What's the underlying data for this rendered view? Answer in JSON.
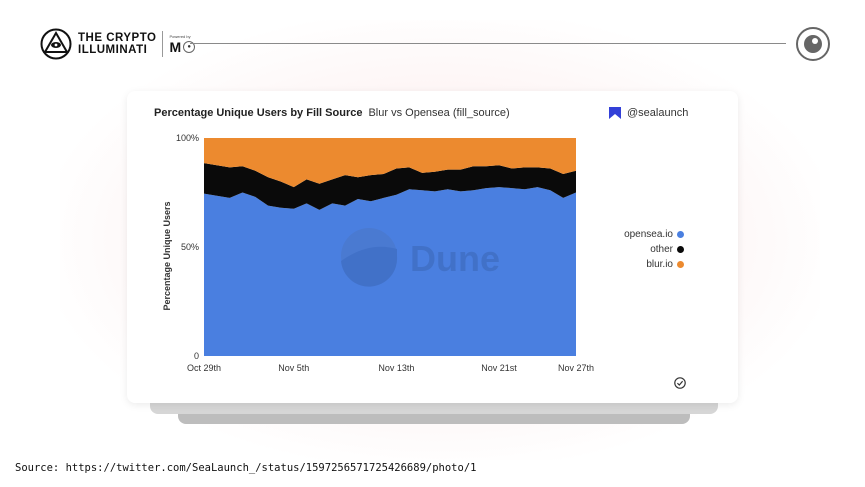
{
  "header": {
    "brand_line1": "THE CRYPTO",
    "brand_line2": "ILLUMINATI",
    "powered_by": "Powered by",
    "powered_mark": "M"
  },
  "card": {
    "title": "Percentage Unique Users by Fill Source",
    "subtitle": "Blur vs Opensea (fill_source)",
    "handle": "@sealaunch",
    "watermark": "Dune"
  },
  "source_text": "Source: https://twitter.com/SeaLaunch_/status/1597256571725426689/photo/1",
  "colors": {
    "opensea": "#4a7fe0",
    "other": "#0a0a0a",
    "blur": "#ec8a2f",
    "sealaunch_icon": "#3340d8"
  },
  "chart_data": {
    "type": "area",
    "stacked": true,
    "title": "Percentage Unique Users by Fill Source",
    "subtitle": "Blur vs Opensea (fill_source)",
    "ylabel": "Percentage Unique Users",
    "xlabel": "",
    "ylim": [
      0,
      100
    ],
    "yticks": [
      0,
      50,
      100
    ],
    "ytick_labels": [
      "0",
      "50%",
      "100%"
    ],
    "xtick_labels": [
      "Oct 29th",
      "Nov 5th",
      "Nov 13th",
      "Nov 21st",
      "Nov 27th"
    ],
    "xtick_index": [
      0,
      7,
      15,
      23,
      29
    ],
    "legend_position": "right",
    "x": [
      "Oct 29",
      "Oct 30",
      "Oct 31",
      "Nov 1",
      "Nov 2",
      "Nov 3",
      "Nov 4",
      "Nov 5",
      "Nov 6",
      "Nov 7",
      "Nov 8",
      "Nov 9",
      "Nov 10",
      "Nov 11",
      "Nov 12",
      "Nov 13",
      "Nov 14",
      "Nov 15",
      "Nov 16",
      "Nov 17",
      "Nov 18",
      "Nov 19",
      "Nov 20",
      "Nov 21",
      "Nov 22",
      "Nov 23",
      "Nov 24",
      "Nov 25",
      "Nov 26",
      "Nov 27"
    ],
    "series": [
      {
        "name": "opensea.io",
        "color": "#4a7fe0",
        "values": [
          74.5,
          73.5,
          72.5,
          75,
          73,
          69,
          68,
          67.5,
          70,
          67,
          70,
          69,
          72,
          71,
          72.5,
          74,
          76.5,
          76,
          75.5,
          76.5,
          75.5,
          76,
          77,
          77.5,
          77,
          76.5,
          77.5,
          76,
          72.5,
          75
        ]
      },
      {
        "name": "other",
        "color": "#0a0a0a",
        "values": [
          14,
          14,
          14,
          12,
          12,
          13,
          12,
          10,
          11,
          12,
          11,
          14,
          10,
          12,
          11,
          12,
          10,
          8,
          9,
          9,
          10,
          11,
          10,
          10,
          9,
          10,
          9,
          10,
          11,
          10
        ]
      },
      {
        "name": "blur.io",
        "color": "#ec8a2f",
        "values": [
          11.5,
          12.5,
          13.5,
          13,
          15,
          18,
          20,
          22.5,
          19,
          21,
          19,
          17,
          18,
          17,
          16.5,
          14,
          13.5,
          16,
          15.5,
          14.5,
          14.5,
          13,
          13,
          12.5,
          14,
          13.5,
          13.5,
          14,
          16.5,
          15
        ]
      }
    ],
    "legend_entries": [
      "opensea.io",
      "other",
      "blur.io"
    ]
  }
}
